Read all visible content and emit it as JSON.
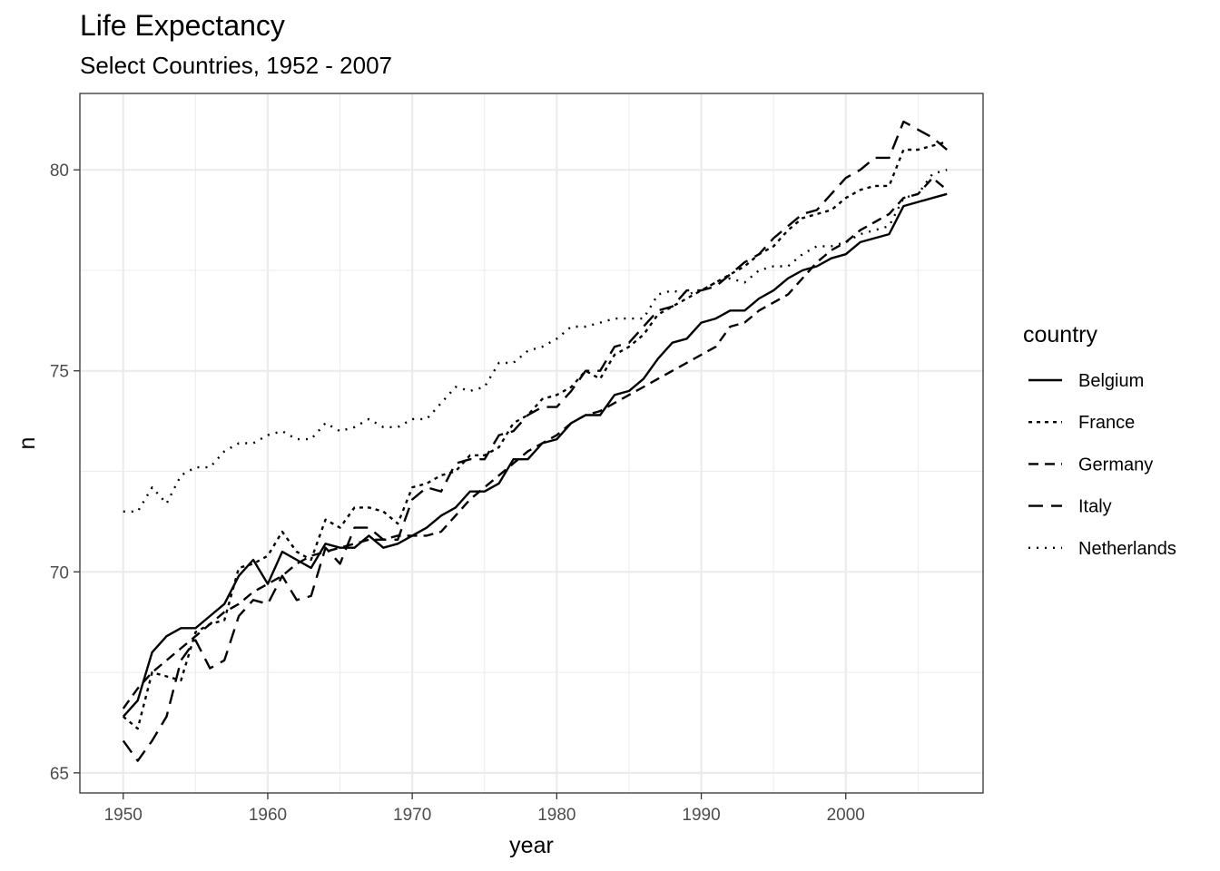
{
  "chart_data": {
    "type": "line",
    "title": "Life Expectancy",
    "subtitle": "Select Countries, 1952 - 2007",
    "xlabel": "year",
    "ylabel": "n",
    "xlim": [
      1947,
      2009.5
    ],
    "ylim": [
      64.5,
      81.9
    ],
    "x_ticks": [
      1950,
      1960,
      1970,
      1980,
      1990,
      2000
    ],
    "y_ticks": [
      65,
      70,
      75,
      80
    ],
    "grid": true,
    "legend": {
      "title": "country",
      "position": "right"
    },
    "x": [
      1950,
      1951,
      1952,
      1953,
      1954,
      1955,
      1956,
      1957,
      1958,
      1959,
      1960,
      1961,
      1962,
      1963,
      1964,
      1965,
      1966,
      1967,
      1968,
      1969,
      1970,
      1971,
      1972,
      1973,
      1974,
      1975,
      1976,
      1977,
      1978,
      1979,
      1980,
      1981,
      1982,
      1983,
      1984,
      1985,
      1986,
      1987,
      1988,
      1989,
      1990,
      1991,
      1992,
      1993,
      1994,
      1995,
      1996,
      1997,
      1998,
      1999,
      2000,
      2001,
      2002,
      2003,
      2004,
      2005,
      2006,
      2007
    ],
    "series": [
      {
        "name": "Belgium",
        "dash": "solid",
        "values": [
          66.4,
          66.8,
          68.0,
          68.4,
          68.6,
          68.6,
          68.9,
          69.2,
          69.9,
          70.3,
          69.7,
          70.5,
          70.3,
          70.1,
          70.7,
          70.6,
          70.6,
          70.9,
          70.6,
          70.7,
          70.9,
          71.1,
          71.4,
          71.6,
          72.0,
          72.0,
          72.2,
          72.8,
          72.8,
          73.2,
          73.3,
          73.7,
          73.9,
          73.9,
          74.4,
          74.5,
          74.8,
          75.3,
          75.7,
          75.8,
          76.2,
          76.3,
          76.5,
          76.5,
          76.8,
          77.0,
          77.3,
          77.5,
          77.6,
          77.8,
          77.9,
          78.2,
          78.3,
          78.4,
          79.1,
          79.2,
          79.3,
          79.4
        ]
      },
      {
        "name": "France",
        "dash": "dotted",
        "values": [
          66.4,
          66.1,
          67.5,
          67.4,
          67.3,
          68.5,
          68.7,
          68.8,
          70.1,
          70.2,
          70.4,
          71.0,
          70.5,
          70.3,
          71.3,
          71.1,
          71.6,
          71.6,
          71.5,
          71.2,
          72.1,
          72.2,
          72.4,
          72.5,
          72.9,
          72.9,
          73.1,
          73.7,
          73.9,
          74.3,
          74.4,
          74.6,
          75.0,
          74.8,
          75.4,
          75.6,
          75.9,
          76.4,
          76.6,
          76.8,
          77.0,
          77.2,
          77.4,
          77.6,
          77.9,
          78.1,
          78.5,
          78.8,
          78.9,
          79.0,
          79.3,
          79.5,
          79.6,
          79.6,
          80.5,
          80.5,
          80.6,
          80.7
        ]
      },
      {
        "name": "Germany",
        "dash": "dashed",
        "values": [
          66.6,
          67.1,
          67.5,
          67.8,
          68.1,
          68.4,
          68.7,
          69.0,
          69.2,
          69.5,
          69.7,
          69.9,
          70.2,
          70.4,
          70.5,
          70.6,
          70.7,
          70.8,
          70.8,
          70.9,
          70.9,
          70.9,
          71.0,
          71.4,
          71.8,
          72.1,
          72.4,
          72.7,
          73.0,
          73.2,
          73.4,
          73.7,
          73.9,
          74.0,
          74.2,
          74.4,
          74.6,
          74.8,
          75.0,
          75.2,
          75.4,
          75.6,
          76.1,
          76.2,
          76.5,
          76.7,
          76.9,
          77.3,
          77.7,
          78.0,
          78.2,
          78.5,
          78.7,
          78.9,
          79.3,
          79.4,
          79.8,
          79.5
        ]
      },
      {
        "name": "Italy",
        "dash": "longdash",
        "values": [
          65.8,
          65.3,
          65.8,
          66.4,
          67.8,
          68.3,
          67.6,
          67.8,
          68.9,
          69.3,
          69.2,
          69.9,
          69.3,
          69.4,
          70.6,
          70.2,
          71.1,
          71.1,
          70.8,
          70.8,
          71.8,
          72.1,
          72.0,
          72.7,
          72.8,
          72.8,
          73.4,
          73.5,
          73.9,
          74.1,
          74.1,
          74.5,
          75.0,
          75.0,
          75.6,
          75.7,
          76.1,
          76.5,
          76.6,
          77.0,
          77.0,
          77.1,
          77.4,
          77.7,
          77.9,
          78.3,
          78.6,
          78.9,
          79.0,
          79.4,
          79.8,
          80.0,
          80.3,
          80.3,
          81.2,
          81.0,
          80.8,
          80.5
        ]
      },
      {
        "name": "Netherlands",
        "dash": "dotdot",
        "values": [
          71.5,
          71.5,
          72.1,
          71.7,
          72.4,
          72.6,
          72.6,
          73.0,
          73.2,
          73.2,
          73.4,
          73.5,
          73.3,
          73.3,
          73.7,
          73.5,
          73.6,
          73.8,
          73.6,
          73.6,
          73.8,
          73.8,
          74.2,
          74.6,
          74.5,
          74.6,
          75.2,
          75.2,
          75.5,
          75.6,
          75.8,
          76.1,
          76.1,
          76.2,
          76.3,
          76.3,
          76.3,
          76.9,
          77.0,
          76.9,
          77.0,
          77.2,
          77.3,
          77.2,
          77.5,
          77.6,
          77.6,
          77.9,
          78.1,
          78.1,
          78.2,
          78.4,
          78.5,
          78.6,
          79.3,
          79.4,
          79.9,
          80.0
        ]
      }
    ]
  }
}
